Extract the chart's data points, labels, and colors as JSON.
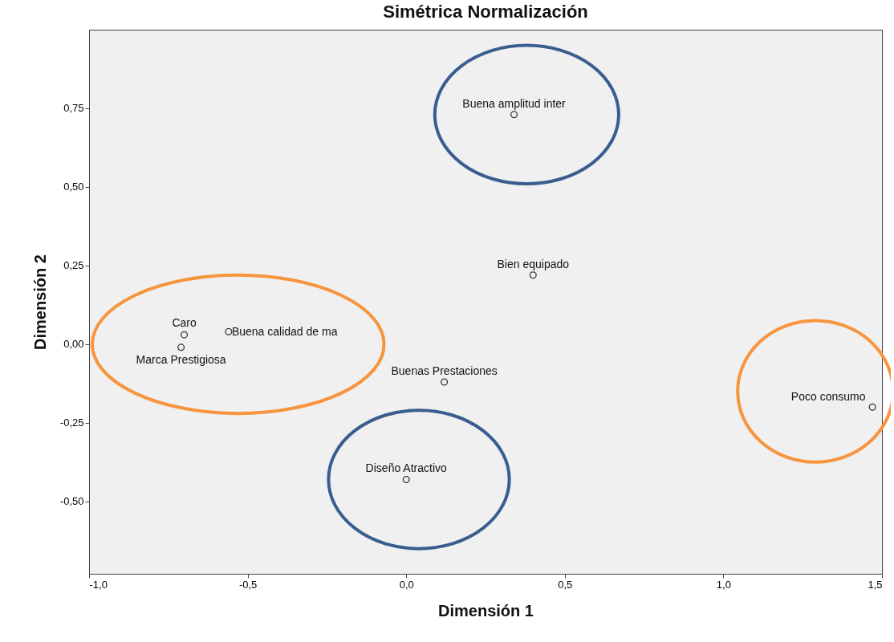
{
  "chart_data": {
    "type": "scatter",
    "title": "Simétrica Normalización",
    "xlabel": "Dimensión 1",
    "ylabel": "Dimensión 2",
    "xlim": [
      -1.0,
      1.5
    ],
    "ylim": [
      -0.73,
      1.0
    ],
    "xticks": [
      {
        "value": -1.0,
        "label": "-1,0"
      },
      {
        "value": -0.5,
        "label": "-0,5"
      },
      {
        "value": 0.0,
        "label": "0,0"
      },
      {
        "value": 0.5,
        "label": "0,5"
      },
      {
        "value": 1.0,
        "label": "1,0"
      },
      {
        "value": 1.5,
        "label": "1,5"
      }
    ],
    "yticks": [
      {
        "value": -0.5,
        "label": "-0,50"
      },
      {
        "value": -0.25,
        "label": "-0,25"
      },
      {
        "value": 0.0,
        "label": "0,00"
      },
      {
        "value": 0.25,
        "label": "0,25"
      },
      {
        "value": 0.5,
        "label": "0,50"
      },
      {
        "value": 0.75,
        "label": "0,75"
      }
    ],
    "grid": false,
    "legend": false,
    "marker": "circle",
    "series": [
      {
        "color": "#333333",
        "x": [
          0.34,
          0.4,
          -0.7,
          -0.56,
          -0.71,
          0.12,
          0.0,
          1.47
        ],
        "values": [
          0.73,
          0.22,
          0.03,
          0.04,
          -0.01,
          -0.12,
          -0.43,
          -0.2
        ]
      }
    ],
    "annotations": [
      {
        "text": "Buena amplitud inter",
        "x": 0.34,
        "y": 0.73
      },
      {
        "text": "Bien equipado",
        "x": 0.4,
        "y": 0.22
      },
      {
        "text": "Caro",
        "x": -0.7,
        "y": 0.03
      },
      {
        "text": "Buena calidad de ma",
        "x": -0.56,
        "y": 0.04
      },
      {
        "text": "Marca Prestigiosa",
        "x": -0.71,
        "y": -0.01
      },
      {
        "text": "Buenas Prestaciones",
        "x": 0.12,
        "y": -0.12
      },
      {
        "text": "Diseño Atractivo",
        "x": 0.0,
        "y": -0.43
      },
      {
        "text": "Poco consumo",
        "x": 1.47,
        "y": -0.2
      }
    ]
  }
}
